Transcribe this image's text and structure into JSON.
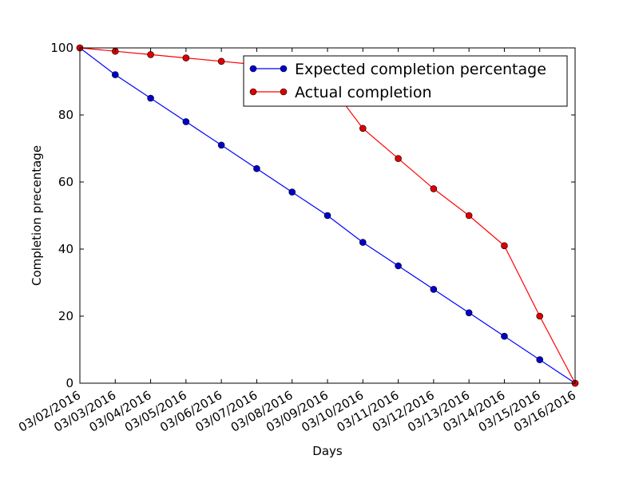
{
  "chart_data": {
    "type": "line",
    "title": "",
    "xlabel": "Days",
    "ylabel": "Completion precentage",
    "categories": [
      "03/02/2016",
      "03/03/2016",
      "03/04/2016",
      "03/05/2016",
      "03/06/2016",
      "03/07/2016",
      "03/08/2016",
      "03/09/2016",
      "03/10/2016",
      "03/11/2016",
      "03/12/2016",
      "03/13/2016",
      "03/14/2016",
      "03/15/2016",
      "03/16/2016"
    ],
    "ylim": [
      0,
      100
    ],
    "yticks": [
      "0",
      "20",
      "40",
      "60",
      "80",
      "100"
    ],
    "grid": false,
    "legend_position": "top-right",
    "series": [
      {
        "name": "Expected completion percentage",
        "color": "#0000ff",
        "marker_color": "#0000cc",
        "values": [
          100,
          92,
          85,
          78,
          71,
          64,
          57,
          50,
          42,
          35,
          28,
          21,
          14,
          7,
          0
        ]
      },
      {
        "name": "Actual completion",
        "color": "#ff0000",
        "marker_color": "#dd0000",
        "values": [
          100,
          99,
          98,
          97,
          96,
          95,
          93,
          90,
          76,
          67,
          58,
          50,
          41,
          20,
          0
        ]
      }
    ]
  }
}
